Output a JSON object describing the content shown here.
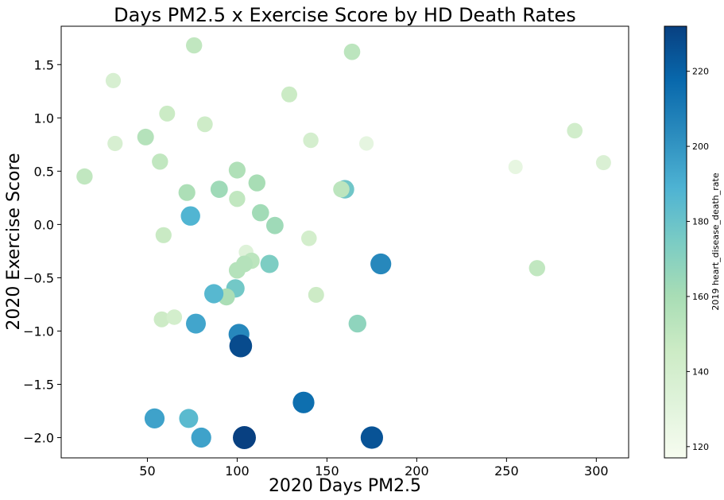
{
  "chart_data": {
    "type": "scatter",
    "title": "Days PM2.5 x Exercise Score by HD Death Rates",
    "xlabel": "2020 Days PM2.5",
    "ylabel": "2020 Exercise Score",
    "xlim": [
      2,
      318
    ],
    "ylim": [
      -2.19,
      1.86
    ],
    "xticks": [
      50,
      100,
      150,
      200,
      250,
      300
    ],
    "yticks": [
      -2.0,
      -1.5,
      -1.0,
      -0.5,
      0.0,
      0.5,
      1.0,
      1.5
    ],
    "grid": false,
    "colorbar": {
      "label": "2019 heart_disease_death_rate",
      "range": [
        117,
        232
      ],
      "ticks": [
        120,
        140,
        160,
        180,
        200,
        220
      ],
      "colormap": "GnBu",
      "colors": [
        "#f7fcf0",
        "#e0f3db",
        "#ccebc5",
        "#a8ddb5",
        "#7bccc4",
        "#4eb3d3",
        "#2b8cbe",
        "#0868ac",
        "#084081"
      ]
    },
    "marker_size_encodes": "2019 heart_disease_death_rate",
    "points": [
      {
        "x": 76,
        "y": 1.68,
        "c": 150
      },
      {
        "x": 164,
        "y": 1.62,
        "c": 152
      },
      {
        "x": 31,
        "y": 1.35,
        "c": 138
      },
      {
        "x": 129,
        "y": 1.22,
        "c": 146
      },
      {
        "x": 61,
        "y": 1.04,
        "c": 146
      },
      {
        "x": 82,
        "y": 0.94,
        "c": 144
      },
      {
        "x": 49,
        "y": 0.82,
        "c": 155
      },
      {
        "x": 32,
        "y": 0.76,
        "c": 138
      },
      {
        "x": 141,
        "y": 0.79,
        "c": 140
      },
      {
        "x": 172,
        "y": 0.76,
        "c": 128
      },
      {
        "x": 288,
        "y": 0.88,
        "c": 142
      },
      {
        "x": 57,
        "y": 0.59,
        "c": 150
      },
      {
        "x": 255,
        "y": 0.54,
        "c": 127
      },
      {
        "x": 304,
        "y": 0.58,
        "c": 136
      },
      {
        "x": 15,
        "y": 0.45,
        "c": 150
      },
      {
        "x": 100,
        "y": 0.51,
        "c": 157
      },
      {
        "x": 111,
        "y": 0.39,
        "c": 160
      },
      {
        "x": 90,
        "y": 0.33,
        "c": 163
      },
      {
        "x": 72,
        "y": 0.3,
        "c": 158
      },
      {
        "x": 160,
        "y": 0.33,
        "c": 178
      },
      {
        "x": 158,
        "y": 0.33,
        "c": 152
      },
      {
        "x": 100,
        "y": 0.24,
        "c": 150
      },
      {
        "x": 113,
        "y": 0.11,
        "c": 162
      },
      {
        "x": 74,
        "y": 0.08,
        "c": 188
      },
      {
        "x": 121,
        "y": -0.01,
        "c": 163
      },
      {
        "x": 59,
        "y": -0.1,
        "c": 147
      },
      {
        "x": 140,
        "y": -0.13,
        "c": 141
      },
      {
        "x": 105,
        "y": -0.26,
        "c": 133
      },
      {
        "x": 108,
        "y": -0.34,
        "c": 152
      },
      {
        "x": 104,
        "y": -0.37,
        "c": 155
      },
      {
        "x": 100,
        "y": -0.43,
        "c": 155
      },
      {
        "x": 118,
        "y": -0.37,
        "c": 174
      },
      {
        "x": 180,
        "y": -0.37,
        "c": 205
      },
      {
        "x": 267,
        "y": -0.41,
        "c": 150
      },
      {
        "x": 99,
        "y": -0.6,
        "c": 177
      },
      {
        "x": 94,
        "y": -0.68,
        "c": 159
      },
      {
        "x": 87,
        "y": -0.65,
        "c": 186
      },
      {
        "x": 144,
        "y": -0.66,
        "c": 145
      },
      {
        "x": 58,
        "y": -0.89,
        "c": 145
      },
      {
        "x": 65,
        "y": -0.87,
        "c": 141
      },
      {
        "x": 77,
        "y": -0.93,
        "c": 194
      },
      {
        "x": 167,
        "y": -0.93,
        "c": 168
      },
      {
        "x": 101,
        "y": -1.03,
        "c": 205
      },
      {
        "x": 102,
        "y": -1.14,
        "c": 228
      },
      {
        "x": 137,
        "y": -1.67,
        "c": 215
      },
      {
        "x": 54,
        "y": -1.82,
        "c": 195
      },
      {
        "x": 73,
        "y": -1.82,
        "c": 185
      },
      {
        "x": 80,
        "y": -2.0,
        "c": 195
      },
      {
        "x": 104,
        "y": -2.0,
        "c": 232
      },
      {
        "x": 175,
        "y": -2.0,
        "c": 225
      }
    ]
  }
}
